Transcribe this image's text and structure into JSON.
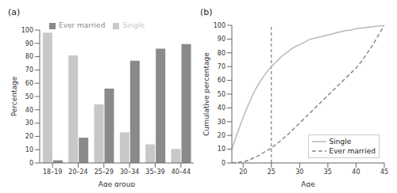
{
  "chart_data": [
    {
      "type": "bar",
      "title": "(a)",
      "x_label": "Age group",
      "y_label": "Percentage",
      "categories": [
        "18–19",
        "20–24",
        "25–29",
        "30–34",
        "35–39",
        "40–44"
      ],
      "series": [
        {
          "name": "Single",
          "color": "#c8c8c8",
          "values": [
            98,
            81,
            44,
            23,
            14,
            10.5
          ]
        },
        {
          "name": "Ever married",
          "color": "#8a8a8a",
          "values": [
            2,
            19,
            56,
            77,
            86,
            89.5
          ]
        }
      ],
      "ylim": [
        0,
        100
      ],
      "yticks": [
        0,
        10,
        20,
        30,
        40,
        50,
        60,
        70,
        80,
        90,
        100
      ],
      "legend": "top",
      "grid": false
    },
    {
      "type": "line",
      "title": "(b)",
      "x_label": "Age",
      "y_label": "Cumulative percentage",
      "x": [
        18,
        19,
        20,
        21,
        22,
        23,
        24,
        25,
        26,
        27,
        28,
        29,
        30,
        31,
        32,
        33,
        34,
        35,
        36,
        37,
        38,
        39,
        40,
        41,
        42,
        43,
        44,
        45
      ],
      "series": [
        {
          "name": "Single",
          "color": "#b8b8b8",
          "line_style": "solid",
          "values": [
            10,
            22,
            33,
            43,
            52,
            59,
            65,
            70,
            74,
            78,
            81,
            84,
            86,
            88,
            90,
            91,
            92,
            93,
            94,
            95,
            96,
            96.5,
            97.5,
            98,
            98.5,
            99,
            99.5,
            100
          ]
        },
        {
          "name": "Ever married",
          "color": "#8a8a8a",
          "line_style": "dashed",
          "values": [
            0,
            0.5,
            1,
            2,
            4,
            6,
            8.5,
            11,
            14,
            17.5,
            21,
            25,
            29,
            33,
            37,
            41,
            45,
            49,
            53,
            57,
            61,
            65,
            69,
            74,
            80,
            86,
            93,
            100
          ]
        }
      ],
      "xlim": [
        18,
        45
      ],
      "xticks": [
        20,
        25,
        30,
        35,
        40,
        45
      ],
      "ylim": [
        0,
        100
      ],
      "yticks": [
        0,
        10,
        20,
        30,
        40,
        50,
        60,
        70,
        80,
        90,
        100
      ],
      "vline_x": 25,
      "legend": "lower right",
      "grid": false
    }
  ]
}
